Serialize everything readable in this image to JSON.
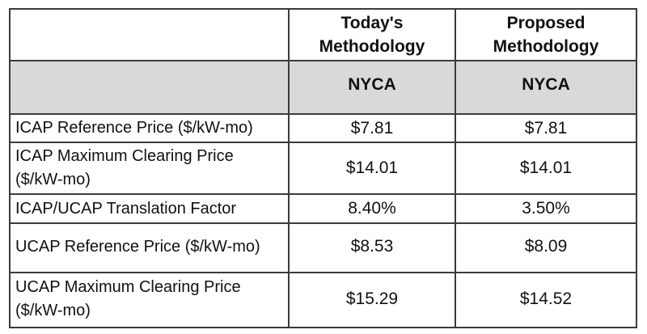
{
  "table": {
    "header": {
      "blank": "",
      "today_label": "Today's\nMethodology",
      "proposed_label": "Proposed\nMethodology"
    },
    "subheader": {
      "blank": "",
      "today_region": "NYCA",
      "proposed_region": "NYCA"
    },
    "rows": [
      {
        "label": "ICAP Reference Price ($/kW-mo)",
        "today": "$7.81",
        "proposed": "$7.81"
      },
      {
        "label": "ICAP Maximum Clearing Price ($/kW-mo)",
        "today": "$14.01",
        "proposed": "$14.01"
      },
      {
        "label": "ICAP/UCAP Translation Factor",
        "today": "8.40%",
        "proposed": "3.50%"
      },
      {
        "label": "UCAP Reference Price ($/kW-mo)",
        "today": "$8.53",
        "proposed": "$8.09"
      },
      {
        "label": "UCAP Maximum Clearing Price ($/kW-mo)",
        "today": "$15.29",
        "proposed": "$14.52"
      }
    ],
    "colors": {
      "subheader_fill": "#d9d9d9",
      "border": "#3b3b3b",
      "text": "#111111",
      "background": "#ffffff"
    }
  }
}
